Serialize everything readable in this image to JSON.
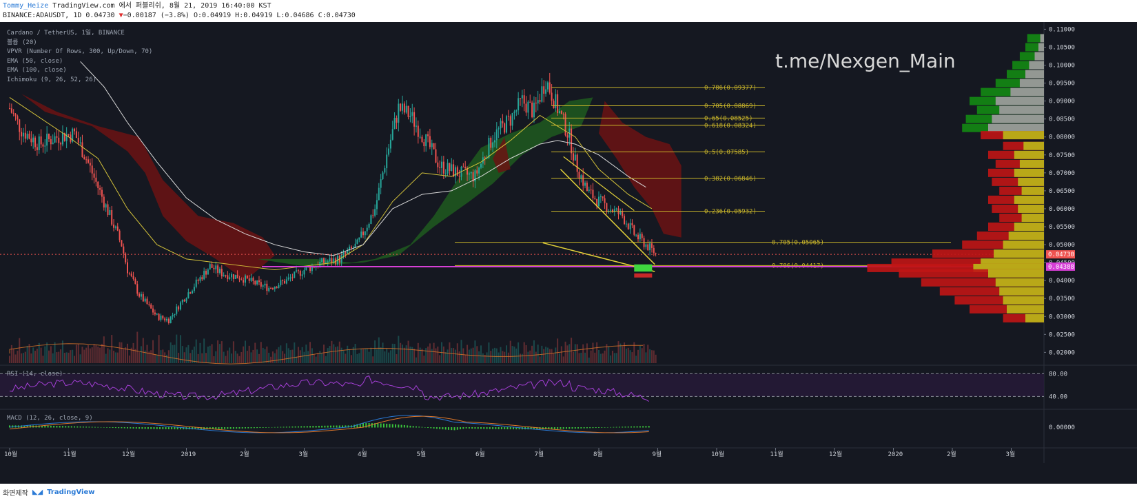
{
  "header": {
    "author": "Tommy_Heize",
    "published_text": " TradingView.com 에서 퍼블리쉬, 8월 21, 2019 16:40:00 KST",
    "ohlc_prefix": "BINANCE:ADAUSDT, 1D 0.04730",
    "change": "−0.00187 (−3.8%)",
    "ohlc_values": " O:0.04919 H:0.04919 L:0.04686 C:0.04730"
  },
  "legend": [
    "Cardano / TetherUS, 1일, BINANCE",
    "볼륨 (20)",
    "VPVR (Number Of Rows, 300, Up/Down, 70)",
    "EMA (50, close)",
    "EMA (100, close)",
    "Ichimoku (9, 26, 52, 26)"
  ],
  "watermark": "t.me/Nexgen_Main",
  "rsi_label": "RSI (14, close)",
  "macd_label": "MACD (12, 26, close, 9)",
  "footer": {
    "left_text": "화면제작",
    "logo_text": "TradingView"
  },
  "colors": {
    "bg": "#151821",
    "up": "#26a69a",
    "down": "#ef5350",
    "ema50": "#d4c23a",
    "ema100": "#d9d9d9",
    "fib": "#c9b52a",
    "magenta": "#d63fd6",
    "cloud_red": "#6b1313",
    "cloud_green": "#1f5a1f",
    "rsi": "#a43fd6",
    "macd": "#2a7ad6",
    "signal": "#e0782a",
    "hist": "#3fe03f"
  },
  "chart_data": {
    "type": "candlestick",
    "symbol": "BINANCE:ADAUSDT",
    "interval": "1D",
    "ylim": [
      0,
      0.11
    ],
    "y_ticks": [
      "0.11000",
      "0.10500",
      "0.10000",
      "0.09500",
      "0.09000",
      "0.08500",
      "0.08000",
      "0.07500",
      "0.07000",
      "0.06500",
      "0.06000",
      "0.05500",
      "0.05000",
      "0.04500",
      "0.04000",
      "0.03500",
      "0.03000",
      "0.02500",
      "0.02000"
    ],
    "y_tick_values": [
      0.11,
      0.105,
      0.1,
      0.095,
      0.09,
      0.085,
      0.08,
      0.075,
      0.07,
      0.065,
      0.06,
      0.055,
      0.05,
      0.045,
      0.04,
      0.035,
      0.03,
      0.025,
      0.02
    ],
    "x_ticks": [
      "10월",
      "11월",
      "12월",
      "2019",
      "2월",
      "3월",
      "4월",
      "5월",
      "6월",
      "7월",
      "8월",
      "9월",
      "10월",
      "11월",
      "12월",
      "2020",
      "2월",
      "3월"
    ],
    "price_labels": [
      {
        "text": "0.04730",
        "value": 0.0473,
        "color": "#ef5350"
      },
      {
        "text": "0.04388",
        "value": 0.04388,
        "color": "#d63fd6"
      }
    ],
    "fib_levels_upper": [
      {
        "label": "0.786(0.09377)",
        "value": 0.09377
      },
      {
        "label": "0.705(0.08869)",
        "value": 0.08869
      },
      {
        "label": "0.65(0.08525)",
        "value": 0.08525
      },
      {
        "label": "0.618(0.08324)",
        "value": 0.08324
      },
      {
        "label": "0.5(0.07585)",
        "value": 0.07585
      },
      {
        "label": "0.382(0.06846)",
        "value": 0.06846
      },
      {
        "label": "0.236(0.05932)",
        "value": 0.05932
      }
    ],
    "fib_levels_lower": [
      {
        "label": "0.705(0.05065)",
        "value": 0.05065
      },
      {
        "label": "0.786(0.04417)",
        "value": 0.04417
      }
    ],
    "close_path": [
      [
        0,
        0.088
      ],
      [
        0.2,
        0.082
      ],
      [
        0.5,
        0.078
      ],
      [
        0.8,
        0.08
      ],
      [
        1.1,
        0.081
      ],
      [
        1.3,
        0.074
      ],
      [
        1.6,
        0.062
      ],
      [
        1.9,
        0.05
      ],
      [
        2.0,
        0.043
      ],
      [
        2.2,
        0.036
      ],
      [
        2.5,
        0.03
      ],
      [
        2.7,
        0.029
      ],
      [
        3.0,
        0.036
      ],
      [
        3.2,
        0.04
      ],
      [
        3.4,
        0.044
      ],
      [
        3.6,
        0.042
      ],
      [
        3.9,
        0.041
      ],
      [
        4.2,
        0.039
      ],
      [
        4.4,
        0.038
      ],
      [
        4.7,
        0.04
      ],
      [
        5.0,
        0.043
      ],
      [
        5.3,
        0.045
      ],
      [
        5.6,
        0.046
      ],
      [
        5.9,
        0.05
      ],
      [
        6.2,
        0.06
      ],
      [
        6.4,
        0.075
      ],
      [
        6.6,
        0.088
      ],
      [
        6.8,
        0.086
      ],
      [
        7.1,
        0.078
      ],
      [
        7.3,
        0.072
      ],
      [
        7.6,
        0.07
      ],
      [
        7.9,
        0.069
      ],
      [
        8.2,
        0.08
      ],
      [
        8.5,
        0.085
      ],
      [
        8.7,
        0.09
      ],
      [
        8.9,
        0.087
      ],
      [
        9.1,
        0.096
      ],
      [
        9.3,
        0.088
      ],
      [
        9.5,
        0.08
      ],
      [
        9.6,
        0.073
      ],
      [
        9.8,
        0.065
      ],
      [
        10.0,
        0.062
      ],
      [
        10.2,
        0.06
      ],
      [
        10.4,
        0.058
      ],
      [
        10.6,
        0.053
      ],
      [
        10.8,
        0.05
      ],
      [
        11.0,
        0.047
      ]
    ],
    "ema50_path": [
      [
        0,
        0.091
      ],
      [
        1,
        0.08
      ],
      [
        1.5,
        0.074
      ],
      [
        2,
        0.06
      ],
      [
        2.5,
        0.05
      ],
      [
        3,
        0.046
      ],
      [
        4,
        0.044
      ],
      [
        4.5,
        0.043
      ],
      [
        5,
        0.044
      ],
      [
        5.5,
        0.045
      ],
      [
        6,
        0.05
      ],
      [
        6.5,
        0.062
      ],
      [
        7,
        0.07
      ],
      [
        7.5,
        0.069
      ],
      [
        8,
        0.073
      ],
      [
        8.5,
        0.079
      ],
      [
        9,
        0.086
      ],
      [
        9.3,
        0.083
      ],
      [
        9.6,
        0.08
      ],
      [
        10,
        0.071
      ],
      [
        10.5,
        0.064
      ],
      [
        10.9,
        0.06
      ]
    ],
    "ema100_path": [
      [
        1.2,
        0.101
      ],
      [
        1.6,
        0.094
      ],
      [
        2,
        0.084
      ],
      [
        2.5,
        0.073
      ],
      [
        3,
        0.063
      ],
      [
        3.5,
        0.057
      ],
      [
        4,
        0.053
      ],
      [
        4.5,
        0.05
      ],
      [
        5,
        0.048
      ],
      [
        5.5,
        0.047
      ],
      [
        6,
        0.05
      ],
      [
        6.5,
        0.06
      ],
      [
        7,
        0.064
      ],
      [
        7.5,
        0.065
      ],
      [
        8,
        0.069
      ],
      [
        8.5,
        0.074
      ],
      [
        9,
        0.078
      ],
      [
        9.3,
        0.079
      ],
      [
        9.6,
        0.078
      ],
      [
        10,
        0.075
      ],
      [
        10.5,
        0.069
      ],
      [
        10.8,
        0.066
      ]
    ],
    "rsi_ylim": [
      20,
      90
    ],
    "rsi_ticks": [
      {
        "text": "80.00",
        "value": 80
      },
      {
        "text": "40.00",
        "value": 40
      }
    ],
    "macd_ticks": [
      {
        "text": "0.00000",
        "value": 0
      }
    ]
  }
}
